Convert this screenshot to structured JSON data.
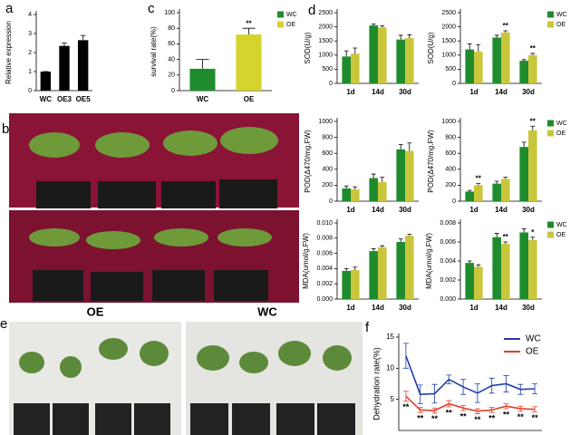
{
  "panel_letters": [
    "a",
    "b",
    "c",
    "d",
    "e",
    "f"
  ],
  "photo_labels": [
    "OE",
    "WC"
  ],
  "chart_data": [
    {
      "type": "bar",
      "y_label": "Relative expression",
      "categories": [
        "WC",
        "OE3",
        "OE5"
      ],
      "series": [
        {
          "color": "#000000",
          "values": [
            1,
            2.35,
            2.65
          ],
          "errors": [
            0,
            0.15,
            0.25
          ]
        }
      ],
      "ylim": [
        0,
        4
      ],
      "yticks": [
        0,
        1,
        2,
        3,
        4
      ]
    },
    {
      "type": "bar",
      "y_label": "survival rate(%)",
      "categories": [
        "WC",
        "OE"
      ],
      "series": [
        {
          "colors": [
            "#1e8c2c",
            "#d4d42c"
          ],
          "values": [
            28,
            72
          ],
          "errors": [
            12,
            8
          ]
        }
      ],
      "ylim": [
        0,
        100
      ],
      "yticks": [
        0,
        20,
        40,
        60,
        80,
        100
      ],
      "legend": "right",
      "annotations": [
        {
          "text": "**",
          "series": 0,
          "index": 1
        }
      ]
    },
    {
      "type": "bar",
      "y_label": "SOD(U/g)",
      "categories": [
        "1d",
        "14d",
        "30d"
      ],
      "series": [
        {
          "name": "WC",
          "color": "#1e8c2c",
          "values": [
            950,
            2050,
            1550
          ],
          "errors": [
            200,
            50,
            150
          ]
        },
        {
          "name": "OE",
          "color": "#c9c63c",
          "values": [
            1050,
            1980,
            1600
          ],
          "errors": [
            200,
            60,
            120
          ]
        }
      ],
      "ylim": [
        0,
        2500
      ],
      "yticks": [
        0,
        500,
        1000,
        1500,
        2000,
        2500
      ]
    },
    {
      "type": "bar",
      "y_label": "SOD(U/g)",
      "categories": [
        "1d",
        "14d",
        "30d"
      ],
      "series": [
        {
          "name": "WC",
          "color": "#1e8c2c",
          "values": [
            1200,
            1620,
            800
          ],
          "errors": [
            200,
            80,
            40
          ]
        },
        {
          "name": "OE",
          "color": "#c9c63c",
          "values": [
            1120,
            1800,
            1000
          ],
          "errors": [
            250,
            60,
            60
          ]
        }
      ],
      "ylim": [
        0,
        2500
      ],
      "yticks": [
        0,
        500,
        1000,
        1500,
        2000,
        2500
      ],
      "legend": "right",
      "annotations": [
        {
          "text": "**",
          "series": 1,
          "index": 1
        },
        {
          "text": "**",
          "series": 1,
          "index": 2
        }
      ]
    },
    {
      "type": "bar",
      "y_label": "POD(Δ470/mg.FW)",
      "categories": [
        "1d",
        "14d",
        "30d"
      ],
      "series": [
        {
          "name": "WC",
          "color": "#1e8c2c",
          "values": [
            160,
            290,
            650
          ],
          "errors": [
            30,
            50,
            60
          ]
        },
        {
          "name": "OE",
          "color": "#c9c63c",
          "values": [
            150,
            240,
            630
          ],
          "errors": [
            30,
            60,
            100
          ]
        }
      ],
      "ylim": [
        0,
        1000
      ],
      "yticks": [
        0,
        200,
        400,
        600,
        800,
        1000
      ]
    },
    {
      "type": "bar",
      "y_label": "POD(Δ470/mg.FW)",
      "categories": [
        "1d",
        "14d",
        "30d"
      ],
      "series": [
        {
          "name": "WC",
          "color": "#1e8c2c",
          "values": [
            120,
            220,
            680
          ],
          "errors": [
            15,
            30,
            60
          ]
        },
        {
          "name": "OE",
          "color": "#c9c63c",
          "values": [
            200,
            280,
            890
          ],
          "errors": [
            20,
            20,
            50
          ]
        }
      ],
      "ylim": [
        0,
        1000
      ],
      "yticks": [
        0,
        200,
        400,
        600,
        800,
        1000
      ],
      "legend": "right",
      "annotations": [
        {
          "text": "**",
          "series": 1,
          "index": 0
        },
        {
          "text": "**",
          "series": 1,
          "index": 2
        }
      ]
    },
    {
      "type": "bar",
      "y_label": "MDA(umol/g.FW)",
      "categories": [
        "1d",
        "14d",
        "30d"
      ],
      "series": [
        {
          "name": "WC",
          "color": "#1e8c2c",
          "values": [
            0.0037,
            0.0063,
            0.0075
          ],
          "errors": [
            0.0003,
            0.0003,
            0.0004
          ]
        },
        {
          "name": "OE",
          "color": "#c9c63c",
          "values": [
            0.0038,
            0.0068,
            0.0083
          ],
          "errors": [
            0.0004,
            0.0002,
            0.0002
          ]
        }
      ],
      "ylim": [
        0,
        0.01
      ],
      "yticks": [
        {
          "value": 0,
          "label": "0.000"
        },
        0.002,
        0.004,
        0.006,
        0.008,
        {
          "value": 0.01,
          "label": "0.010"
        }
      ]
    },
    {
      "type": "bar",
      "y_label": "MDA(umol/g.FW)",
      "categories": [
        "1d",
        "14d",
        "30d"
      ],
      "series": [
        {
          "name": "WC",
          "color": "#1e8c2c",
          "values": [
            0.0038,
            0.0065,
            0.007
          ],
          "errors": [
            0.0002,
            0.0004,
            0.0004
          ]
        },
        {
          "name": "OE",
          "color": "#c9c63c",
          "values": [
            0.0034,
            0.0058,
            0.0062
          ],
          "errors": [
            0.0002,
            0.0002,
            0.0003
          ]
        }
      ],
      "ylim": [
        0,
        0.008
      ],
      "yticks": [
        {
          "value": 0,
          "label": "0.000"
        },
        0.002,
        0.004,
        0.006,
        0.008
      ],
      "legend": "right",
      "annotations": [
        {
          "text": "**",
          "series": 1,
          "index": 1
        },
        {
          "text": "*",
          "series": 1,
          "index": 2
        }
      ]
    },
    {
      "type": "line",
      "y_label": "Dehydration rate(%)",
      "categories": [
        null,
        null,
        null,
        null,
        null,
        null,
        null,
        null,
        null,
        null
      ],
      "series": [
        {
          "name": "WC",
          "color": "#1f3fa8",
          "values": [
            12,
            5.8,
            5.9,
            8.2,
            7,
            6,
            7.2,
            7.5,
            6.6,
            6.7
          ],
          "errors": [
            2,
            1.5,
            1.5,
            0.7,
            1.2,
            1.5,
            1.2,
            1.3,
            0.8,
            0.8
          ]
        },
        {
          "name": "OE",
          "color": "#e0402a",
          "values": [
            5.5,
            3.3,
            3.2,
            4.3,
            3.6,
            3.1,
            3.3,
            3.9,
            3.5,
            3.4
          ],
          "errors": [
            0.8,
            0.4,
            0.4,
            0.5,
            0.4,
            0.4,
            0.4,
            0.4,
            0.4,
            0.4
          ]
        }
      ],
      "ylim": [
        0,
        15
      ],
      "yticks": [
        5,
        10,
        15
      ],
      "legend": "upper right",
      "annotations": [
        {
          "text": "**",
          "series": 1,
          "index": 0
        },
        {
          "text": "**",
          "series": 1,
          "index": 1
        },
        {
          "text": "**",
          "series": 1,
          "index": 2
        },
        {
          "text": "**",
          "series": 1,
          "index": 3
        },
        {
          "text": "**",
          "series": 1,
          "index": 4
        },
        {
          "text": "**",
          "series": 1,
          "index": 5
        },
        {
          "text": "**",
          "series": 1,
          "index": 6
        },
        {
          "text": "**",
          "series": 1,
          "index": 7
        },
        {
          "text": "**",
          "series": 1,
          "index": 8
        },
        {
          "text": "**",
          "series": 1,
          "index": 9
        }
      ]
    }
  ]
}
